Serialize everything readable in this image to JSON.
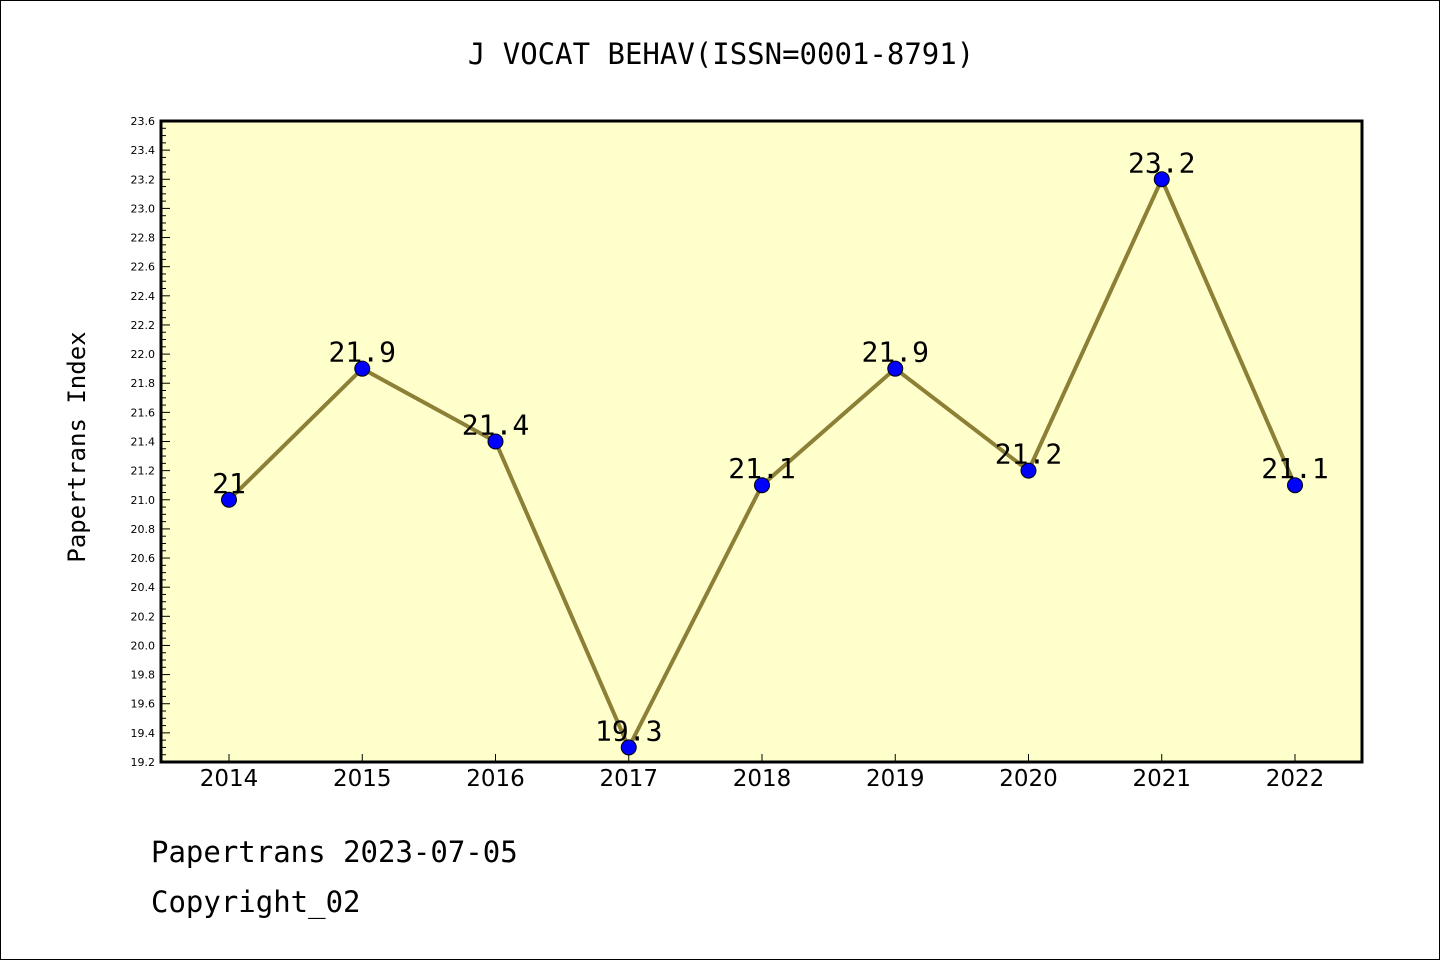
{
  "chart_data": {
    "type": "line",
    "title": "J VOCAT BEHAV(ISSN=0001-8791)",
    "ylabel": "Papertrans Index",
    "xlabel": "",
    "categories": [
      "2014",
      "2015",
      "2016",
      "2017",
      "2018",
      "2019",
      "2020",
      "2021",
      "2022"
    ],
    "series": [
      {
        "values": [
          21.0,
          21.9,
          21.4,
          19.3,
          21.1,
          21.9,
          21.2,
          23.2,
          21.1
        ],
        "point_labels": [
          "21",
          "21.9",
          "21.4",
          "19.3",
          "21.1",
          "21.9",
          "21.2",
          "23.2",
          "21.1"
        ]
      }
    ],
    "ylim": [
      19.2,
      23.6
    ],
    "yticks": [
      "19.2",
      "19.4",
      "19.6",
      "19.8",
      "20.0",
      "20.2",
      "20.4",
      "20.6",
      "20.8",
      "21.0",
      "21.2",
      "21.4",
      "21.6",
      "21.8",
      "22.0",
      "22.2",
      "22.4",
      "22.6",
      "22.8",
      "23.0",
      "23.2",
      "23.4",
      "23.6"
    ],
    "grid": false,
    "colors": {
      "plot_background": "#ffffcc",
      "line": "#8c7f36",
      "marker": "#0000ff",
      "axis": "#000000"
    }
  },
  "footer": {
    "brand": "Papertrans",
    "date": "2023-07-05",
    "copyright": "Copyright_02"
  }
}
